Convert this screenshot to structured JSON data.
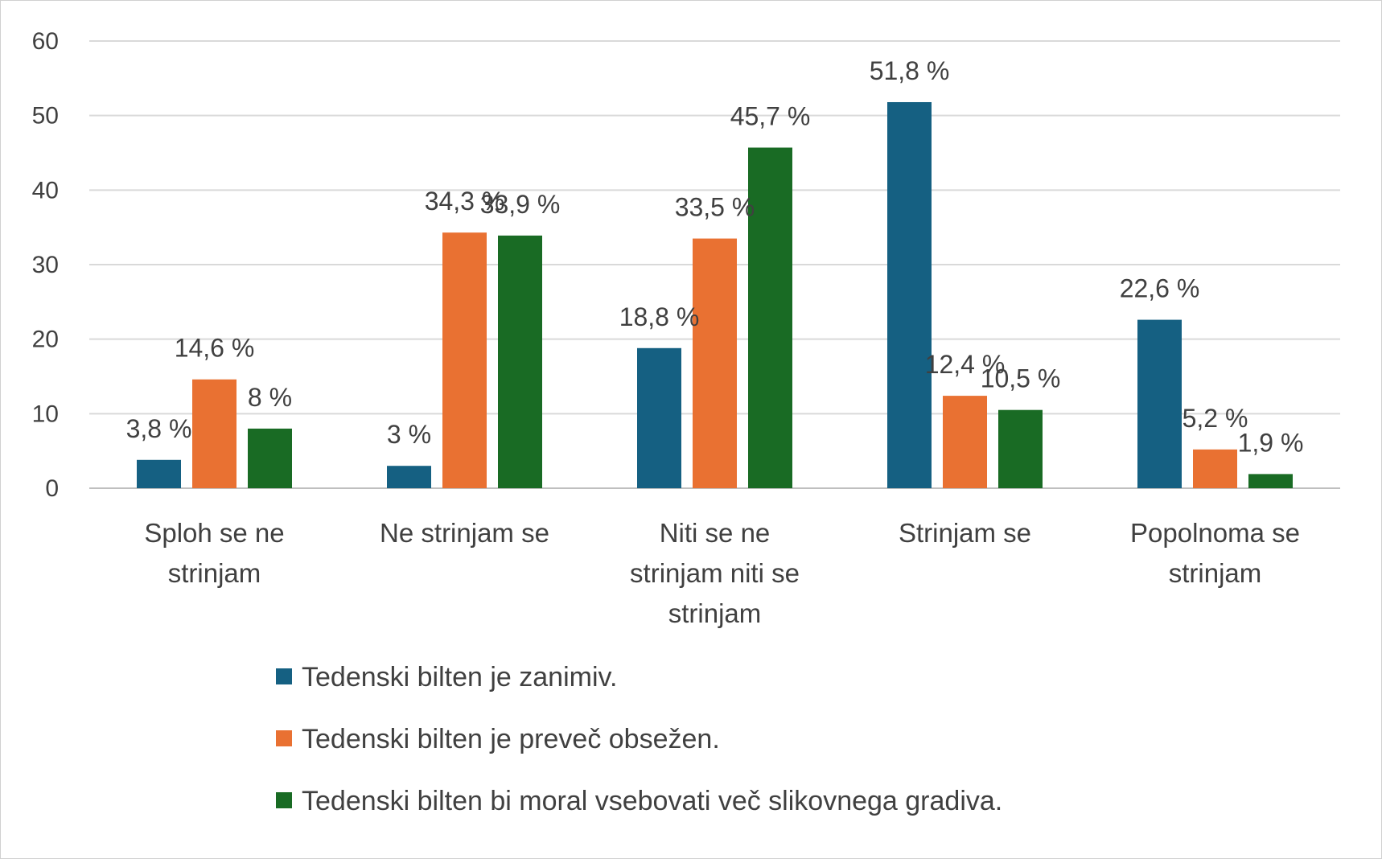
{
  "chart_data": {
    "type": "bar",
    "title": "",
    "xlabel": "",
    "ylabel": "",
    "ylim": [
      0,
      60
    ],
    "yticks": [
      0,
      10,
      20,
      30,
      40,
      50,
      60
    ],
    "grid": true,
    "legend_position": "bottom",
    "categories": [
      [
        "Sploh se ne",
        "strinjam"
      ],
      [
        "Ne strinjam se"
      ],
      [
        "Niti se ne",
        "strinjam niti se",
        "strinjam"
      ],
      [
        "Strinjam se"
      ],
      [
        "Popolnoma se",
        "strinjam"
      ]
    ],
    "series": [
      {
        "name": "Tedenski bilten je zanimiv.",
        "color": "#156082",
        "values": [
          3.8,
          3,
          18.8,
          51.8,
          22.6
        ],
        "labels": [
          "3,8 %",
          "3 %",
          "18,8 %",
          "51,8 %",
          "22,6 %"
        ]
      },
      {
        "name": "Tedenski bilten je preveč obsežen.",
        "color": "#E97132",
        "values": [
          14.6,
          34.3,
          33.5,
          12.4,
          5.2
        ],
        "labels": [
          "14,6 %",
          "34,3 %",
          "33,5 %",
          "12,4 %",
          "5,2 %"
        ]
      },
      {
        "name": "Tedenski bilten bi moral vsebovati več slikovnega gradiva.",
        "color": "#196B24",
        "values": [
          8,
          33.9,
          45.7,
          10.5,
          1.9
        ],
        "labels": [
          "8 %",
          "33,9 %",
          "45,7 %",
          "10,5 %",
          "1,9 %"
        ]
      }
    ]
  }
}
